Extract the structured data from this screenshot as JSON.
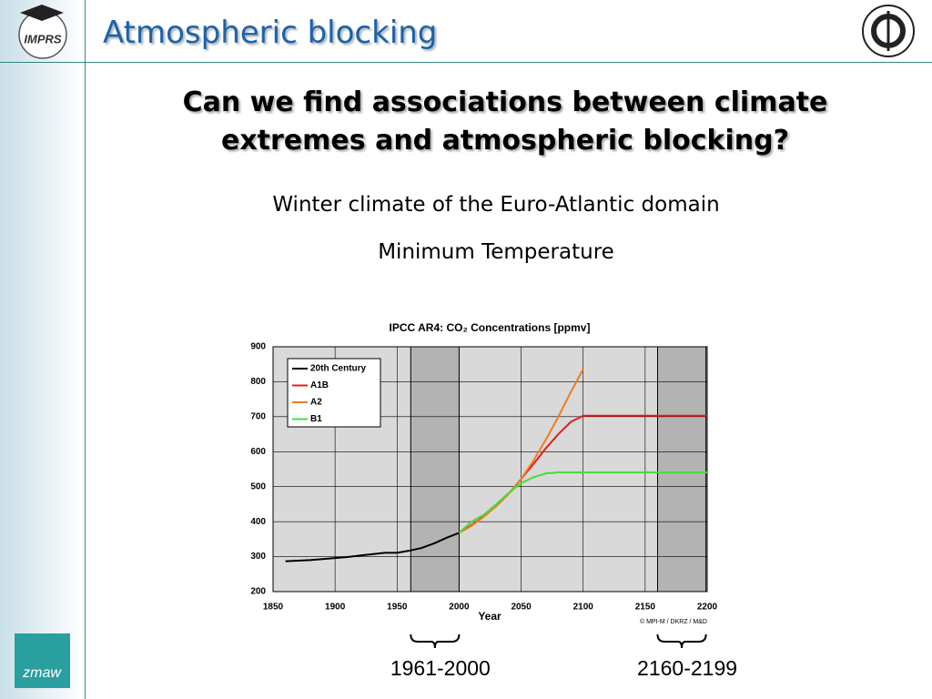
{
  "slide": {
    "title": "Atmospheric blocking",
    "headline": "Can we find associations between climate extremes and atmospheric blocking?",
    "subtitle": "Winter climate of the Euro-Atlantic domain",
    "subtitle2": "Minimum Temperature",
    "logo_left": "IMPRS",
    "logo_bottom": "zmaw"
  },
  "chart_data": {
    "type": "line",
    "title": "IPCC AR4:  CO₂ Concentrations [ppmv]",
    "xlabel": "Year",
    "credit": "© MPI-M / DKRZ / M&D",
    "xlim": [
      1850,
      2200
    ],
    "ylim": [
      200,
      900
    ],
    "xticks": [
      1850,
      1900,
      1950,
      2000,
      2050,
      2100,
      2150,
      2200
    ],
    "yticks": [
      200,
      300,
      400,
      500,
      600,
      700,
      800,
      900
    ],
    "grid": true,
    "legend": "upper left",
    "background": "#d9d9d9",
    "shade_color": "#b3b3b3",
    "shaded_periods": [
      {
        "start": 1961,
        "end": 2000,
        "label": "1961-2000"
      },
      {
        "start": 2160,
        "end": 2199,
        "label": "2160-2199"
      }
    ],
    "series": [
      {
        "name": "20th Century",
        "color": "#000000",
        "x": [
          1860,
          1880,
          1900,
          1910,
          1920,
          1930,
          1940,
          1950,
          1960,
          1970,
          1980,
          1990,
          2000
        ],
        "values": [
          287,
          290,
          296,
          299,
          303,
          307,
          311,
          311,
          317,
          325,
          338,
          354,
          368
        ]
      },
      {
        "name": "A1B",
        "color": "#e0201b",
        "x": [
          2000,
          2010,
          2020,
          2030,
          2040,
          2050,
          2060,
          2070,
          2080,
          2090,
          2100,
          2150,
          2200
        ],
        "values": [
          368,
          390,
          415,
          445,
          480,
          522,
          565,
          610,
          650,
          685,
          703,
          703,
          703
        ]
      },
      {
        "name": "A2",
        "color": "#f07d1c",
        "x": [
          2000,
          2010,
          2020,
          2030,
          2040,
          2050,
          2060,
          2070,
          2080,
          2090,
          2100
        ],
        "values": [
          368,
          388,
          414,
          445,
          480,
          522,
          575,
          635,
          700,
          770,
          836
        ]
      },
      {
        "name": "B1",
        "color": "#3ee03a",
        "x": [
          2000,
          2010,
          2020,
          2030,
          2040,
          2050,
          2060,
          2070,
          2080,
          2100,
          2150,
          2200
        ],
        "values": [
          368,
          400,
          420,
          450,
          482,
          510,
          527,
          538,
          541,
          541,
          541,
          541
        ]
      }
    ]
  }
}
